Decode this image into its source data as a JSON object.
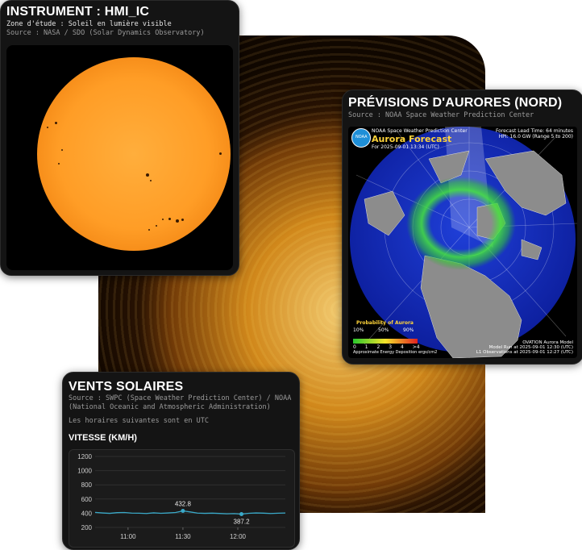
{
  "hmi": {
    "title": "INSTRUMENT : HMI_IC",
    "zone": "Zone d'étude : Soleil en lumière visible",
    "source": "Source : NASA / SDO (Solar Dynamics Observatory)"
  },
  "aurora": {
    "title": "PRÉVISIONS D'AURORES (NORD)",
    "source": "Source : NOAA Space Weather Prediction Center",
    "map": {
      "org": "NOAA Space Weather Prediction Center",
      "heading": "Aurora Forecast",
      "for": "For 2025-09-01 13:34 (UTC)",
      "lead": "Forecast Lead Time: 64 minutes",
      "hp": "HPI: 16.0 GW (Range 5 to 200)",
      "prob_title": "Probability of Aurora",
      "ticks": [
        "10%",
        "50%",
        "90%"
      ],
      "scale": [
        "0",
        "1",
        "2",
        "3",
        "4",
        ">4"
      ],
      "energy": "Approximate Energy Deposition",
      "energy_unit": "ergs/cm2",
      "model": "OVATION Aurora Model",
      "run": "Model Run at 2025-09-01 12:30 (UTC)",
      "obs": "L1 Observations at 2025-09-01 12:27 (UTC)",
      "logo": "NOAA"
    }
  },
  "wind": {
    "title": "VENTS SOLAIRES",
    "source": "Source : SWPC (Space Weather Prediction Center) / NOAA (National Oceanic and Atmospheric Administration)",
    "note": "Les horaires suivantes sont en UTC",
    "section": "VITESSE (KM/H)"
  },
  "chart_data": {
    "type": "line",
    "title": "VITESSE (KM/H)",
    "xlabel": "",
    "ylabel": "",
    "ylim": [
      200,
      1200
    ],
    "yticks": [
      200,
      400,
      600,
      800,
      1000,
      1200
    ],
    "xticks": [
      "11:00",
      "11:30",
      "12:00"
    ],
    "grid": true,
    "color": "#3aa9c8",
    "series": [
      {
        "x": [
          "10:42",
          "10:46",
          "10:50",
          "10:54",
          "10:58",
          "11:02",
          "11:06",
          "11:10",
          "11:14",
          "11:18",
          "11:22",
          "11:26",
          "11:30",
          "11:34",
          "11:38",
          "11:42",
          "11:46",
          "11:50",
          "11:54",
          "11:58",
          "12:02",
          "12:06",
          "12:10",
          "12:14",
          "12:18",
          "12:22",
          "12:26"
        ],
        "values": [
          412,
          404,
          398,
          408,
          410,
          402,
          400,
          396,
          405,
          399,
          404,
          410,
          432.8,
          418,
          402,
          398,
          401,
          397,
          392,
          395,
          387.2,
          399,
          404,
          401,
          396,
          400,
          403
        ]
      }
    ],
    "annotations": [
      {
        "x": "11:30",
        "value": 432.8,
        "label": "432.8"
      },
      {
        "x": "12:02",
        "value": 387.2,
        "label": "387.2"
      }
    ]
  }
}
